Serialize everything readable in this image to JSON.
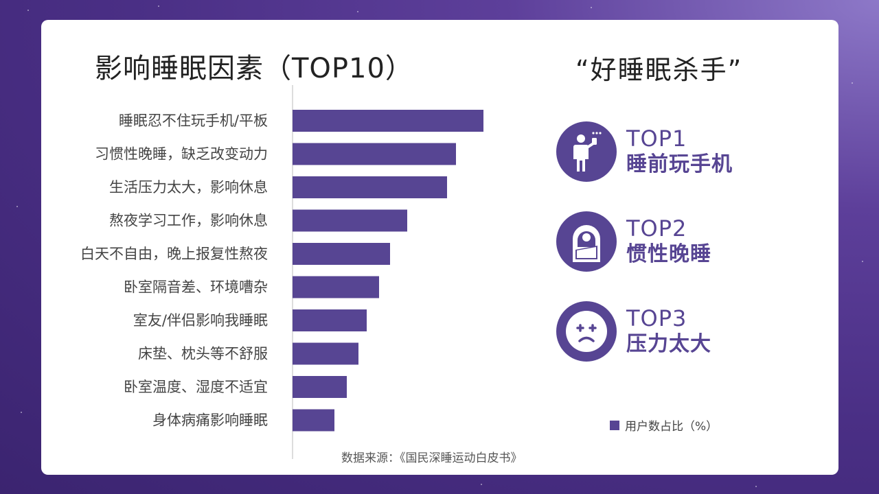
{
  "title": "影响睡眠因素（TOP10）",
  "killers": {
    "title": "“好睡眠杀手”",
    "items": [
      {
        "rank": "TOP1",
        "label": "睡前玩手机",
        "icon": "person-phone-icon"
      },
      {
        "rank": "TOP2",
        "label": "惯性晚睡",
        "icon": "sleeping-bag-icon"
      },
      {
        "rank": "TOP3",
        "label": "压力太大",
        "icon": "stressed-face-icon"
      }
    ]
  },
  "legend": {
    "label": "用户数占比（%）"
  },
  "source": "数据来源：《国民深睡运动白皮书》",
  "colors": {
    "bar": "#574593",
    "accent": "#574593",
    "axis": "#bbbbbb"
  },
  "chart_data": {
    "type": "bar",
    "orientation": "horizontal",
    "categories": [
      "睡眠忍不住玩手机/平板",
      "习惯性晚睡，缺乏改变动力",
      "生活压力太大，影响休息",
      "熬夜学习工作，影响休息",
      "白天不自由，晚上报复性熬夜",
      "卧室隔音差、环境嘈杂",
      "室友/伴侣影响我睡眠",
      "床垫、枕头等不舒服",
      "卧室温度、湿度不适宜",
      "身体病痛影响睡眠"
    ],
    "values": [
      27.8,
      23.8,
      22.5,
      16.7,
      14.2,
      12.6,
      10.8,
      9.6,
      7.9,
      6.1
    ],
    "xlim": [
      0,
      30
    ],
    "grid": false,
    "legend_position": "bottom-right"
  }
}
